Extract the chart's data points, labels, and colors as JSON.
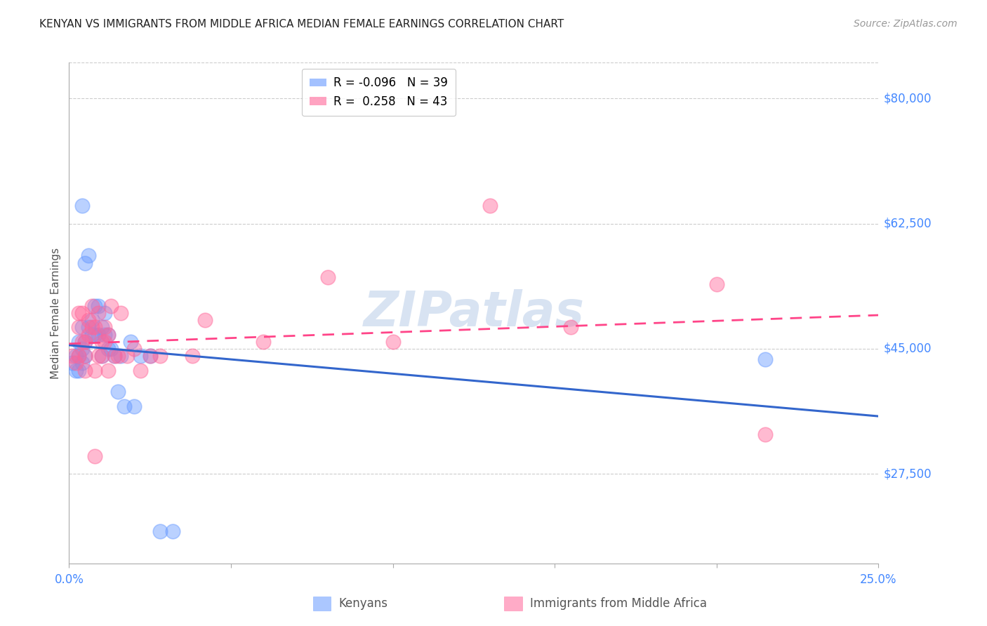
{
  "title": "KENYAN VS IMMIGRANTS FROM MIDDLE AFRICA MEDIAN FEMALE EARNINGS CORRELATION CHART",
  "source": "Source: ZipAtlas.com",
  "ylabel": "Median Female Earnings",
  "y_tick_labels": [
    "$27,500",
    "$45,000",
    "$62,500",
    "$80,000"
  ],
  "y_tick_values": [
    27500,
    45000,
    62500,
    80000
  ],
  "y_min": 15000,
  "y_max": 85000,
  "x_min": 0.0,
  "x_max": 0.25,
  "legend_entry_blue": "R = -0.096   N = 39",
  "legend_entry_pink": "R =  0.258   N = 43",
  "legend_names": [
    "Kenyans",
    "Immigrants from Middle Africa"
  ],
  "watermark": "ZIPatlas",
  "blue_color": "#6699ff",
  "pink_color": "#ff6699",
  "axis_label_color": "#4488ff",
  "title_color": "#222222",
  "grid_color": "#cccccc",
  "kenyans_x": [
    0.001,
    0.002,
    0.002,
    0.003,
    0.003,
    0.003,
    0.004,
    0.004,
    0.004,
    0.005,
    0.005,
    0.005,
    0.006,
    0.006,
    0.007,
    0.007,
    0.008,
    0.008,
    0.009,
    0.009,
    0.01,
    0.01,
    0.011,
    0.011,
    0.012,
    0.012,
    0.013,
    0.014,
    0.015,
    0.016,
    0.017,
    0.019,
    0.02,
    0.022,
    0.025,
    0.028,
    0.032,
    0.215,
    0.004
  ],
  "kenyans_y": [
    43000,
    44000,
    42000,
    46000,
    44000,
    42000,
    48000,
    45000,
    43000,
    57000,
    46000,
    44000,
    58000,
    48000,
    49000,
    47000,
    51000,
    47000,
    51000,
    47000,
    48000,
    44000,
    50000,
    47000,
    47000,
    45000,
    45000,
    44000,
    39000,
    44000,
    37000,
    46000,
    37000,
    44000,
    44000,
    19500,
    19500,
    43500,
    65000
  ],
  "immigrants_x": [
    0.001,
    0.002,
    0.003,
    0.003,
    0.004,
    0.004,
    0.005,
    0.005,
    0.005,
    0.006,
    0.006,
    0.007,
    0.007,
    0.008,
    0.008,
    0.009,
    0.009,
    0.01,
    0.01,
    0.011,
    0.011,
    0.012,
    0.012,
    0.013,
    0.014,
    0.015,
    0.016,
    0.018,
    0.02,
    0.022,
    0.025,
    0.028,
    0.038,
    0.042,
    0.06,
    0.08,
    0.1,
    0.13,
    0.155,
    0.2,
    0.003,
    0.008,
    0.215
  ],
  "immigrants_y": [
    44000,
    43000,
    48000,
    44000,
    50000,
    46000,
    46000,
    44000,
    42000,
    49000,
    47000,
    51000,
    48000,
    48000,
    42000,
    50000,
    44000,
    46000,
    44000,
    48000,
    46000,
    47000,
    42000,
    51000,
    44000,
    44000,
    50000,
    44000,
    45000,
    42000,
    44000,
    44000,
    44000,
    49000,
    46000,
    55000,
    46000,
    65000,
    48000,
    54000,
    50000,
    30000,
    33000
  ]
}
